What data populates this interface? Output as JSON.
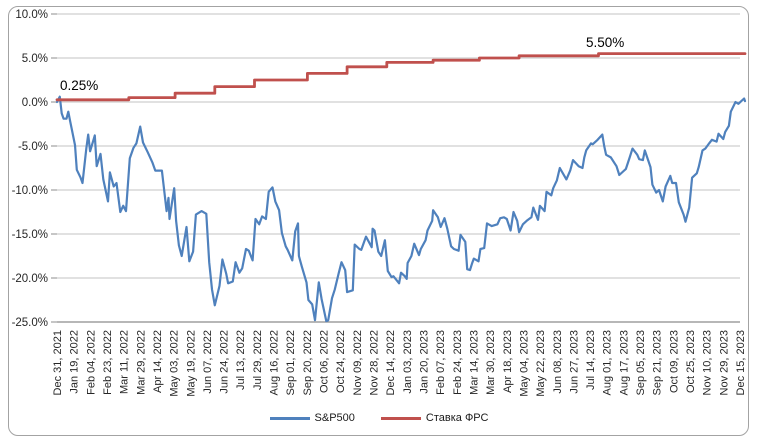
{
  "chart_meta": {
    "frame_border_color": "#a3a3a3",
    "background_color": "#ffffff",
    "gridline_color": "#c3c3c3",
    "axis_line_color": "#8c8c8c",
    "axis_text_color": "#262626",
    "annotation_text_color": "#000000"
  },
  "chart_data": {
    "type": "line",
    "title": "",
    "grid": true,
    "legend_position": "bottom",
    "y_axis": {
      "min": -25,
      "max": 10,
      "ticks": [
        {
          "label": "10.0%",
          "value": 10
        },
        {
          "label": "5.0%",
          "value": 5
        },
        {
          "label": "0.0%",
          "value": 0
        },
        {
          "label": "-5.0%",
          "value": -5
        },
        {
          "label": "-10.0%",
          "value": -10
        },
        {
          "label": "-15.0%",
          "value": -15
        },
        {
          "label": "-20.0%",
          "value": -20
        },
        {
          "label": "-25.0%",
          "value": -25
        }
      ]
    },
    "x_axis": {
      "labels": [
        "Dec 31, 2021",
        "Jan 19, 2022",
        "Feb 04, 2022",
        "Feb 23, 2022",
        "Mar 11, 2022",
        "Mar 29, 2022",
        "Apr 14, 2022",
        "May 03, 2022",
        "May 19, 2022",
        "Jun 07, 2022",
        "Jun 24, 2022",
        "Jul 13, 2022",
        "Jul 29, 2022",
        "Aug 16, 2022",
        "Sep 01, 2022",
        "Sep 20, 2022",
        "Oct 06, 2022",
        "Oct 24, 2022",
        "Nov 09, 2022",
        "Nov 28, 2022",
        "Dec 14, 2022",
        "Jan 03, 2023",
        "Jan 20, 2023",
        "Feb 07, 2023",
        "Feb 24, 2023",
        "Mar 14, 2023",
        "Mar 30, 2023",
        "Apr 18, 2023",
        "May 04, 2023",
        "May 22, 2023",
        "Jun 08, 2023",
        "Jun 27, 2023",
        "Jul 14, 2023",
        "Aug 01, 2023",
        "Aug 17, 2023",
        "Sep 05, 2023",
        "Sep 21, 2023",
        "Oct 09, 2023",
        "Oct 25, 2023",
        "Nov 10, 2023",
        "Nov 29, 2023",
        "Dec 15, 2023"
      ]
    },
    "annotations": [
      {
        "text": "0.25%",
        "x": 60,
        "y": 90
      },
      {
        "text": "5.50%",
        "x": 586,
        "y": 47
      }
    ],
    "series": [
      {
        "name": "S&P500",
        "color": "#4F81BD",
        "draw": "line",
        "width": 2.2,
        "points": [
          [
            "2021-12-31",
            0
          ],
          [
            "2022-01-03",
            0.6
          ],
          [
            "2022-01-05",
            -1.3
          ],
          [
            "2022-01-07",
            -1.9
          ],
          [
            "2022-01-10",
            -1.9
          ],
          [
            "2022-01-12",
            -1.1
          ],
          [
            "2022-01-14",
            -2.2
          ],
          [
            "2022-01-19",
            -4.9
          ],
          [
            "2022-01-21",
            -7.7
          ],
          [
            "2022-01-25",
            -8.6
          ],
          [
            "2022-01-27",
            -9.2
          ],
          [
            "2022-01-31",
            -5.3
          ],
          [
            "2022-02-02",
            -3.7
          ],
          [
            "2022-02-04",
            -5.6
          ],
          [
            "2022-02-09",
            -3.8
          ],
          [
            "2022-02-11",
            -7.3
          ],
          [
            "2022-02-15",
            -5.9
          ],
          [
            "2022-02-18",
            -8.8
          ],
          [
            "2022-02-23",
            -11.3
          ],
          [
            "2022-02-25",
            -8.0
          ],
          [
            "2022-03-01",
            -9.6
          ],
          [
            "2022-03-04",
            -9.2
          ],
          [
            "2022-03-08",
            -12.5
          ],
          [
            "2022-03-11",
            -11.8
          ],
          [
            "2022-03-14",
            -12.4
          ],
          [
            "2022-03-18",
            -6.4
          ],
          [
            "2022-03-22",
            -5.2
          ],
          [
            "2022-03-25",
            -4.7
          ],
          [
            "2022-03-29",
            -2.8
          ],
          [
            "2022-04-01",
            -4.6
          ],
          [
            "2022-04-06",
            -5.7
          ],
          [
            "2022-04-11",
            -6.9
          ],
          [
            "2022-04-14",
            -7.8
          ],
          [
            "2022-04-21",
            -7.8
          ],
          [
            "2022-04-26",
            -12.4
          ],
          [
            "2022-04-28",
            -10.9
          ],
          [
            "2022-04-29",
            -13.3
          ],
          [
            "2022-05-04",
            -9.8
          ],
          [
            "2022-05-06",
            -13.5
          ],
          [
            "2022-05-09",
            -16.3
          ],
          [
            "2022-05-12",
            -17.5
          ],
          [
            "2022-05-17",
            -14.2
          ],
          [
            "2022-05-20",
            -18.1
          ],
          [
            "2022-05-24",
            -17.0
          ],
          [
            "2022-05-27",
            -12.8
          ],
          [
            "2022-06-02",
            -12.4
          ],
          [
            "2022-06-07",
            -12.7
          ],
          [
            "2022-06-10",
            -18.2
          ],
          [
            "2022-06-13",
            -21.3
          ],
          [
            "2022-06-16",
            -23.1
          ],
          [
            "2022-06-21",
            -20.9
          ],
          [
            "2022-06-24",
            -17.9
          ],
          [
            "2022-06-28",
            -19.5
          ],
          [
            "2022-06-30",
            -20.6
          ],
          [
            "2022-07-05",
            -20.4
          ],
          [
            "2022-07-08",
            -18.2
          ],
          [
            "2022-07-12",
            -19.4
          ],
          [
            "2022-07-15",
            -18.9
          ],
          [
            "2022-07-19",
            -16.7
          ],
          [
            "2022-07-22",
            -16.9
          ],
          [
            "2022-07-26",
            -18.0
          ],
          [
            "2022-07-29",
            -13.3
          ],
          [
            "2022-08-02",
            -13.9
          ],
          [
            "2022-08-05",
            -13.0
          ],
          [
            "2022-08-09",
            -13.3
          ],
          [
            "2022-08-12",
            -10.2
          ],
          [
            "2022-08-16",
            -9.7
          ],
          [
            "2022-08-19",
            -11.3
          ],
          [
            "2022-08-23",
            -12.3
          ],
          [
            "2022-08-26",
            -14.9
          ],
          [
            "2022-08-30",
            -16.4
          ],
          [
            "2022-09-01",
            -16.8
          ],
          [
            "2022-09-06",
            -18.0
          ],
          [
            "2022-09-09",
            -14.7
          ],
          [
            "2022-09-12",
            -13.8
          ],
          [
            "2022-09-13",
            -17.5
          ],
          [
            "2022-09-16",
            -18.7
          ],
          [
            "2022-09-21",
            -20.5
          ],
          [
            "2022-09-23",
            -22.5
          ],
          [
            "2022-09-27",
            -23.0
          ],
          [
            "2022-09-30",
            -24.8
          ],
          [
            "2022-10-04",
            -20.5
          ],
          [
            "2022-10-07",
            -22.4
          ],
          [
            "2022-10-12",
            -24.9
          ],
          [
            "2022-10-14",
            -24.8
          ],
          [
            "2022-10-18",
            -22.3
          ],
          [
            "2022-10-21",
            -21.3
          ],
          [
            "2022-10-25",
            -19.5
          ],
          [
            "2022-10-28",
            -18.2
          ],
          [
            "2022-11-01",
            -19.1
          ],
          [
            "2022-11-03",
            -21.6
          ],
          [
            "2022-11-09",
            -21.4
          ],
          [
            "2022-11-11",
            -16.2
          ],
          [
            "2022-11-16",
            -16.7
          ],
          [
            "2022-11-18",
            -16.8
          ],
          [
            "2022-11-23",
            -15.3
          ],
          [
            "2022-11-29",
            -16.5
          ],
          [
            "2022-11-30",
            -14.4
          ],
          [
            "2022-12-02",
            -14.6
          ],
          [
            "2022-12-06",
            -17.0
          ],
          [
            "2022-12-09",
            -17.5
          ],
          [
            "2022-12-13",
            -15.7
          ],
          [
            "2022-12-16",
            -19.2
          ],
          [
            "2022-12-20",
            -19.9
          ],
          [
            "2022-12-22",
            -19.8
          ],
          [
            "2022-12-28",
            -20.6
          ],
          [
            "2022-12-30",
            -19.4
          ],
          [
            "2023-01-03",
            -19.8
          ],
          [
            "2023-01-05",
            -20.1
          ],
          [
            "2023-01-06",
            -18.3
          ],
          [
            "2023-01-10",
            -17.5
          ],
          [
            "2023-01-13",
            -16.1
          ],
          [
            "2023-01-18",
            -17.4
          ],
          [
            "2023-01-20",
            -16.7
          ],
          [
            "2023-01-25",
            -15.7
          ],
          [
            "2023-01-27",
            -14.6
          ],
          [
            "2023-02-01",
            -13.5
          ],
          [
            "2023-02-02",
            -12.3
          ],
          [
            "2023-02-07",
            -13.1
          ],
          [
            "2023-02-10",
            -14.2
          ],
          [
            "2023-02-14",
            -13.2
          ],
          [
            "2023-02-17",
            -14.4
          ],
          [
            "2023-02-21",
            -16.4
          ],
          [
            "2023-02-24",
            -16.7
          ],
          [
            "2023-03-01",
            -16.9
          ],
          [
            "2023-03-03",
            -15.1
          ],
          [
            "2023-03-08",
            -15.9
          ],
          [
            "2023-03-10",
            -19.0
          ],
          [
            "2023-03-13",
            -19.1
          ],
          [
            "2023-03-15",
            -18.4
          ],
          [
            "2023-03-17",
            -17.8
          ],
          [
            "2023-03-22",
            -18.1
          ],
          [
            "2023-03-24",
            -16.7
          ],
          [
            "2023-03-28",
            -16.6
          ],
          [
            "2023-03-31",
            -13.8
          ],
          [
            "2023-04-05",
            -14.1
          ],
          [
            "2023-04-11",
            -13.9
          ],
          [
            "2023-04-14",
            -13.2
          ],
          [
            "2023-04-18",
            -13.1
          ],
          [
            "2023-04-21",
            -13.3
          ],
          [
            "2023-04-25",
            -14.6
          ],
          [
            "2023-04-28",
            -12.5
          ],
          [
            "2023-05-02",
            -13.5
          ],
          [
            "2023-05-04",
            -14.8
          ],
          [
            "2023-05-08",
            -13.9
          ],
          [
            "2023-05-12",
            -13.5
          ],
          [
            "2023-05-17",
            -13.1
          ],
          [
            "2023-05-19",
            -12.0
          ],
          [
            "2023-05-24",
            -13.4
          ],
          [
            "2023-05-26",
            -11.8
          ],
          [
            "2023-05-31",
            -12.4
          ],
          [
            "2023-06-02",
            -10.2
          ],
          [
            "2023-06-07",
            -10.6
          ],
          [
            "2023-06-09",
            -9.8
          ],
          [
            "2023-06-13",
            -8.9
          ],
          [
            "2023-06-16",
            -7.5
          ],
          [
            "2023-06-23",
            -8.8
          ],
          [
            "2023-06-27",
            -7.8
          ],
          [
            "2023-06-30",
            -6.6
          ],
          [
            "2023-07-06",
            -7.3
          ],
          [
            "2023-07-10",
            -7.5
          ],
          [
            "2023-07-12",
            -6.3
          ],
          [
            "2023-07-14",
            -5.5
          ],
          [
            "2023-07-19",
            -4.7
          ],
          [
            "2023-07-21",
            -4.8
          ],
          [
            "2023-07-26",
            -4.3
          ],
          [
            "2023-07-31",
            -3.7
          ],
          [
            "2023-08-02",
            -5.0
          ],
          [
            "2023-08-04",
            -6.0
          ],
          [
            "2023-08-09",
            -6.3
          ],
          [
            "2023-08-15",
            -7.3
          ],
          [
            "2023-08-18",
            -8.3
          ],
          [
            "2023-08-22",
            -7.9
          ],
          [
            "2023-08-25",
            -7.6
          ],
          [
            "2023-08-29",
            -6.3
          ],
          [
            "2023-09-01",
            -5.3
          ],
          [
            "2023-09-06",
            -6.0
          ],
          [
            "2023-09-08",
            -6.5
          ],
          [
            "2023-09-12",
            -6.6
          ],
          [
            "2023-09-14",
            -5.5
          ],
          [
            "2023-09-20",
            -7.4
          ],
          [
            "2023-09-22",
            -9.4
          ],
          [
            "2023-09-26",
            -10.3
          ],
          [
            "2023-09-29",
            -10.0
          ],
          [
            "2023-10-03",
            -11.3
          ],
          [
            "2023-10-06",
            -9.6
          ],
          [
            "2023-10-11",
            -8.4
          ],
          [
            "2023-10-13",
            -9.2
          ],
          [
            "2023-10-17",
            -9.2
          ],
          [
            "2023-10-20",
            -11.4
          ],
          [
            "2023-10-25",
            -12.8
          ],
          [
            "2023-10-27",
            -13.6
          ],
          [
            "2023-10-31",
            -12.0
          ],
          [
            "2023-11-03",
            -8.6
          ],
          [
            "2023-11-08",
            -8.1
          ],
          [
            "2023-11-10",
            -7.4
          ],
          [
            "2023-11-14",
            -5.5
          ],
          [
            "2023-11-17",
            -5.3
          ],
          [
            "2023-11-21",
            -4.7
          ],
          [
            "2023-11-24",
            -4.3
          ],
          [
            "2023-11-29",
            -4.5
          ],
          [
            "2023-12-01",
            -3.6
          ],
          [
            "2023-12-06",
            -4.2
          ],
          [
            "2023-12-08",
            -3.4
          ],
          [
            "2023-12-12",
            -2.7
          ],
          [
            "2023-12-14",
            -1.1
          ],
          [
            "2023-12-19",
            0.0
          ],
          [
            "2023-12-22",
            -0.2
          ],
          [
            "2023-12-28",
            0.4
          ],
          [
            "2023-12-29",
            0.1
          ]
        ]
      },
      {
        "name": "Ставка ФРС",
        "color": "#C0504D",
        "draw": "step",
        "width": 2.8,
        "points": [
          [
            "2021-12-31",
            0.25
          ],
          [
            "2022-03-17",
            0.5
          ],
          [
            "2022-05-05",
            1.0
          ],
          [
            "2022-06-16",
            1.75
          ],
          [
            "2022-07-28",
            2.5
          ],
          [
            "2022-09-22",
            3.25
          ],
          [
            "2022-11-03",
            4.0
          ],
          [
            "2022-12-15",
            4.5
          ],
          [
            "2023-02-02",
            4.75
          ],
          [
            "2023-03-23",
            5.0
          ],
          [
            "2023-05-04",
            5.25
          ],
          [
            "2023-07-27",
            5.5
          ],
          [
            "2023-12-29",
            5.5
          ]
        ]
      }
    ]
  }
}
